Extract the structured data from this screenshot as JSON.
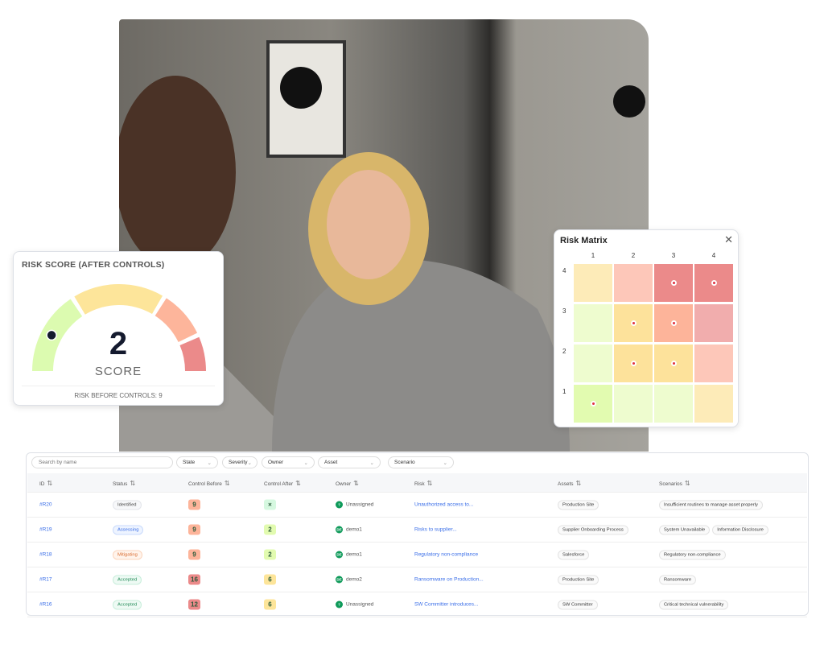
{
  "risk_score": {
    "title": "RISK SCORE (AFTER CONTROLS)",
    "score": "2",
    "score_label": "SCORE",
    "before": "RISK BEFORE CONTROLS: 9",
    "colors": [
      "#dcfbb0",
      "#fde59a",
      "#fdb59b",
      "#eb8a8a"
    ]
  },
  "matrix": {
    "title": "Risk Matrix",
    "close_icon": "close-icon",
    "cols": [
      "1",
      "2",
      "3",
      "4"
    ],
    "rows": [
      "4",
      "3",
      "2",
      "1"
    ],
    "cells": [
      [
        {
          "c": "#fdebb8",
          "d": false
        },
        {
          "c": "#fdc7b9",
          "d": false
        },
        {
          "c": "#eb8a8a",
          "d": true
        },
        {
          "c": "#eb8a8a",
          "d": true
        }
      ],
      [
        {
          "c": "#eefccf",
          "d": false
        },
        {
          "c": "#fde29b",
          "d": true
        },
        {
          "c": "#fdb49a",
          "d": true
        },
        {
          "c": "#f1adad",
          "d": false
        }
      ],
      [
        {
          "c": "#eefccf",
          "d": false
        },
        {
          "c": "#fde29b",
          "d": true
        },
        {
          "c": "#fde29b",
          "d": true
        },
        {
          "c": "#fdc7b9",
          "d": false
        }
      ],
      [
        {
          "c": "#e2fbb0",
          "d": true
        },
        {
          "c": "#eefccf",
          "d": false
        },
        {
          "c": "#eefccf",
          "d": false
        },
        {
          "c": "#fdebb8",
          "d": false
        }
      ]
    ]
  },
  "table": {
    "search_placeholder": "Search by name",
    "filters": [
      "State",
      "Severity",
      "Owner",
      "Asset",
      "Scenario"
    ],
    "headers": [
      "ID",
      "Status",
      "Control Before",
      "Control After",
      "Owner",
      "Risk",
      "Assets",
      "Scenarios"
    ],
    "rows": [
      {
        "id": "#R20",
        "status": "Identified",
        "before": "9",
        "after": "×",
        "owner": "Unassigned",
        "owner_init": "?",
        "risk": "Unauthorized access to...",
        "assets": [
          "Production Site"
        ],
        "scenarios": [
          "Insufficient routines to manage asset properly"
        ]
      },
      {
        "id": "#R19",
        "status": "Assessing",
        "before": "9",
        "after": "2",
        "owner": "demo1",
        "owner_init": "DE",
        "risk": "Risks to supplier...",
        "assets": [
          "Supplier Onboarding Process"
        ],
        "scenarios": [
          "System Unavailable",
          "Information Disclosure"
        ]
      },
      {
        "id": "#R18",
        "status": "Mitigating",
        "before": "9",
        "after": "2",
        "owner": "demo1",
        "owner_init": "DE",
        "risk": "Regulatory non-compliance",
        "assets": [
          "Salesforce"
        ],
        "scenarios": [
          "Regulatory non-compliance"
        ]
      },
      {
        "id": "#R17",
        "status": "Accepted",
        "before": "16",
        "after": "6",
        "owner": "demo2",
        "owner_init": "DE",
        "risk": "Ransomware on Production...",
        "assets": [
          "Production Site"
        ],
        "scenarios": [
          "Ransomware"
        ]
      },
      {
        "id": "#R16",
        "status": "Accepted",
        "before": "12",
        "after": "6",
        "owner": "Unassigned",
        "owner_init": "?",
        "risk": "SW Committer introduces...",
        "assets": [
          "SW Committer"
        ],
        "scenarios": [
          "Critical technical vulnerability"
        ]
      }
    ],
    "status_colors": {
      "Identified": [
        "#f7f8fa",
        "#444",
        "#e3e5ea"
      ],
      "Assessing": [
        "#eef4ff",
        "#3a6ee8",
        "#c9dafc"
      ],
      "Mitigating": [
        "#fff4ec",
        "#d9682a",
        "#fbd5bd"
      ],
      "Accepted": [
        "#eefaf4",
        "#1f8a55",
        "#c8eedb"
      ]
    },
    "score_colors": {
      "×": "#d6f8e0",
      "2": "#e2fbb0",
      "6": "#fde59a",
      "9": "#fdb49a",
      "12": "#eb8a8a",
      "16": "#eb8a8a"
    }
  }
}
